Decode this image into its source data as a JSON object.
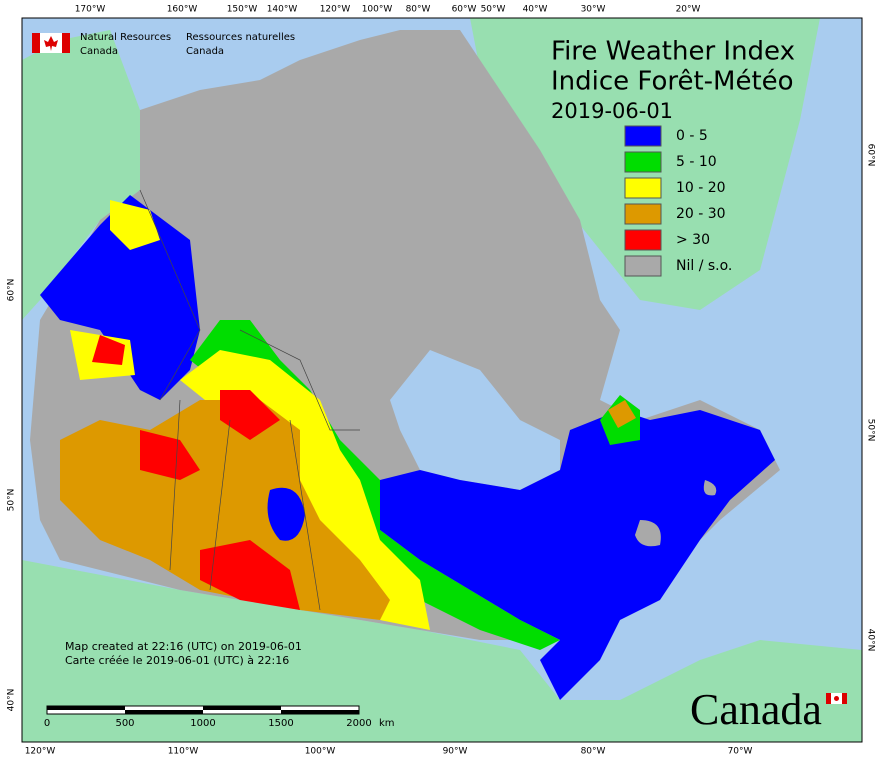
{
  "header": {
    "agency_en": [
      "Natural Resources",
      "Canada"
    ],
    "agency_fr": [
      "Ressources naturelles",
      "Canada"
    ]
  },
  "title": {
    "en": "Fire Weather Index",
    "fr": "Indice Forêt-Météo",
    "date": "2019-06-01"
  },
  "legend": {
    "items": [
      {
        "label": "0 - 5",
        "color": "#0000ff"
      },
      {
        "label": "5 - 10",
        "color": "#00dd00"
      },
      {
        "label": "10 - 20",
        "color": "#ffff00"
      },
      {
        "label": "20 - 30",
        "color": "#dd9900"
      },
      {
        "label": "> 30",
        "color": "#ff0000"
      },
      {
        "label": "Nil / s.o.",
        "color": "#a9a9a9"
      }
    ]
  },
  "graticule": {
    "top": [
      "170°W",
      "160°W",
      "150°W",
      "140°W",
      "120°W",
      "100°W",
      "80°W",
      "60°W",
      "50°W",
      "40°W",
      "30°W",
      "20°W"
    ],
    "bottom": [
      "120°W",
      "110°W",
      "100°W",
      "90°W",
      "80°W",
      "70°W"
    ],
    "left": [
      "60°N",
      "50°N",
      "40°N"
    ],
    "right": [
      "60°N",
      "50°N",
      "40°N"
    ]
  },
  "scale_bar": {
    "labels": [
      "0",
      "500",
      "1000",
      "1500",
      "2000"
    ],
    "unit": "km"
  },
  "footer": {
    "created_en": "Map created at 22:16 (UTC) on 2019-06-01",
    "created_fr": "Carte créée le 2019-06-01 (UTC) à 22:16"
  },
  "wordmark": "Canada"
}
